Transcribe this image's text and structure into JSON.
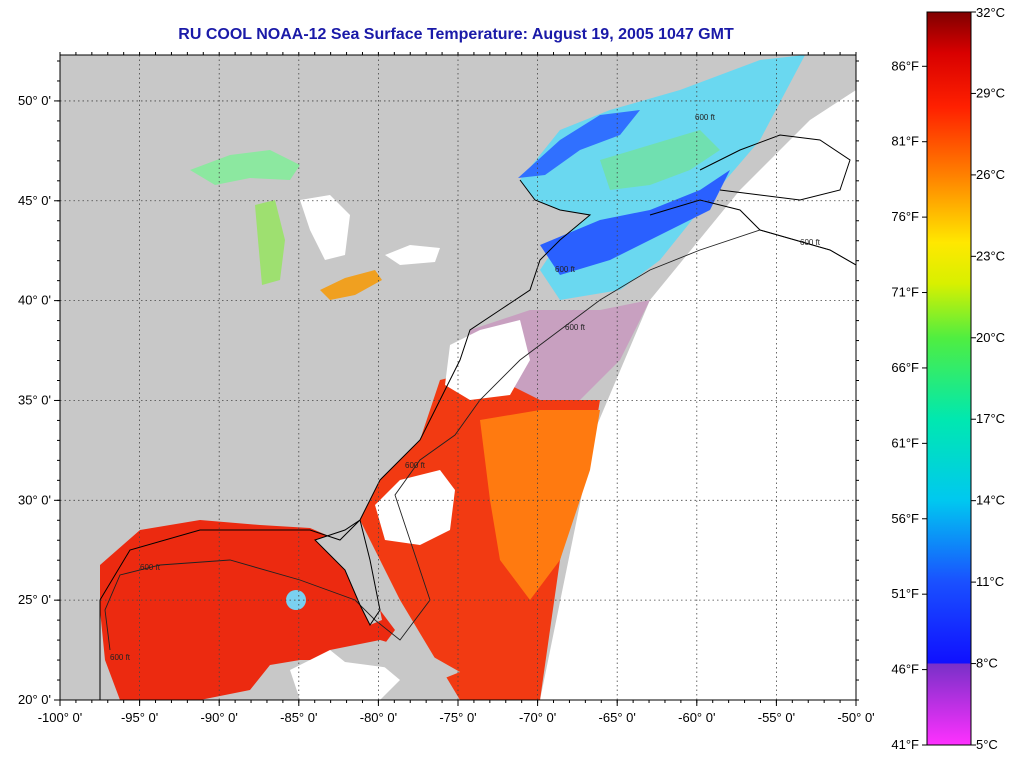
{
  "title": "RU COOL  NOAA-12  Sea Surface Temperature:  August 19, 2005 1047 GMT",
  "map": {
    "lon_range": [
      -100,
      -50
    ],
    "lat_range": [
      20,
      52.3
    ],
    "x_ticks": [
      {
        "lon": -100,
        "label": "-100° 0'"
      },
      {
        "lon": -95,
        "label": "-95° 0'"
      },
      {
        "lon": -90,
        "label": "-90° 0'"
      },
      {
        "lon": -85,
        "label": "-85° 0'"
      },
      {
        "lon": -80,
        "label": "-80° 0'"
      },
      {
        "lon": -75,
        "label": "-75° 0'"
      },
      {
        "lon": -70,
        "label": "-70° 0'"
      },
      {
        "lon": -65,
        "label": "-65° 0'"
      },
      {
        "lon": -60,
        "label": "-60° 0'"
      },
      {
        "lon": -55,
        "label": "-55° 0'"
      },
      {
        "lon": -50,
        "label": "-50° 0'"
      }
    ],
    "y_ticks": [
      {
        "lat": 20,
        "label": "20° 0'"
      },
      {
        "lat": 25,
        "label": "25° 0'"
      },
      {
        "lat": 30,
        "label": "30° 0'"
      },
      {
        "lat": 35,
        "label": "35° 0'"
      },
      {
        "lat": 40,
        "label": "40° 0'"
      },
      {
        "lat": 45,
        "label": "45° 0'"
      },
      {
        "lat": 50,
        "label": "50° 0'"
      }
    ],
    "contour_labels": [
      "600 ft",
      "600 ft",
      "600 ft",
      "600 ft",
      "600 ft",
      "600 ft",
      "600 ft"
    ],
    "colors": {
      "land": "#c8c8c8",
      "no_data": "#ffffff",
      "warm": "#f02010",
      "hot": "#e81a0c",
      "grid": "#444444"
    }
  },
  "colorbar": {
    "min_c": 5,
    "max_c": 32,
    "celsius_labels": [
      "32°C",
      "29°C",
      "26°C",
      "23°C",
      "20°C",
      "17°C",
      "14°C",
      "11°C",
      "8°C",
      "5°C"
    ],
    "fahrenheit_labels": [
      "86°F",
      "81°F",
      "76°F",
      "71°F",
      "66°F",
      "61°F",
      "56°F",
      "51°F",
      "46°F",
      "41°F"
    ],
    "stops": [
      {
        "t": 5,
        "color": "#ff30ff"
      },
      {
        "t": 8,
        "color": "#7830c8"
      },
      {
        "t": 8.01,
        "color": "#1010ff"
      },
      {
        "t": 11,
        "color": "#1a50ff"
      },
      {
        "t": 14,
        "color": "#00c8f0"
      },
      {
        "t": 17,
        "color": "#00e8b0"
      },
      {
        "t": 20,
        "color": "#50ee40"
      },
      {
        "t": 22,
        "color": "#d8f000"
      },
      {
        "t": 23.5,
        "color": "#ffe800"
      },
      {
        "t": 26,
        "color": "#ff8000"
      },
      {
        "t": 28.5,
        "color": "#ff2000"
      },
      {
        "t": 30.5,
        "color": "#d80000"
      },
      {
        "t": 32,
        "color": "#800000"
      }
    ]
  }
}
